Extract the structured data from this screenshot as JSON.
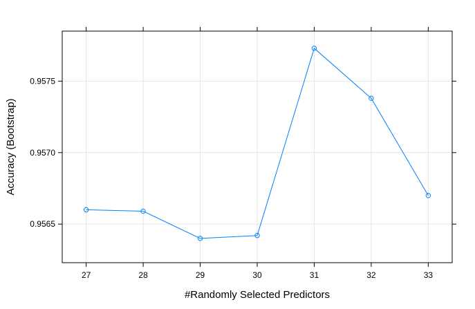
{
  "chart_data": {
    "type": "line",
    "title": "",
    "xlabel": "#Randomly Selected Predictors",
    "ylabel": "Accuracy (Bootstrap)",
    "x": [
      27,
      28,
      29,
      30,
      31,
      32,
      33
    ],
    "series": [
      {
        "values": [
          0.9566,
          0.95659,
          0.9564,
          0.95642,
          0.95773,
          0.95738,
          0.9567
        ],
        "color": "#0080ff",
        "marker": "open-circle"
      }
    ],
    "xticks": [
      27,
      28,
      29,
      30,
      31,
      32,
      33
    ],
    "xtick_labels": [
      "27",
      "28",
      "29",
      "30",
      "31",
      "32",
      "33"
    ],
    "yticks": [
      0.9565,
      0.957,
      0.9575
    ],
    "ytick_labels": [
      "0.9565",
      "0.9570",
      "0.9575"
    ],
    "xlim": [
      26.58,
      33.42
    ],
    "ylim": [
      0.95623,
      0.95785
    ],
    "grid": true,
    "legend": "none"
  }
}
